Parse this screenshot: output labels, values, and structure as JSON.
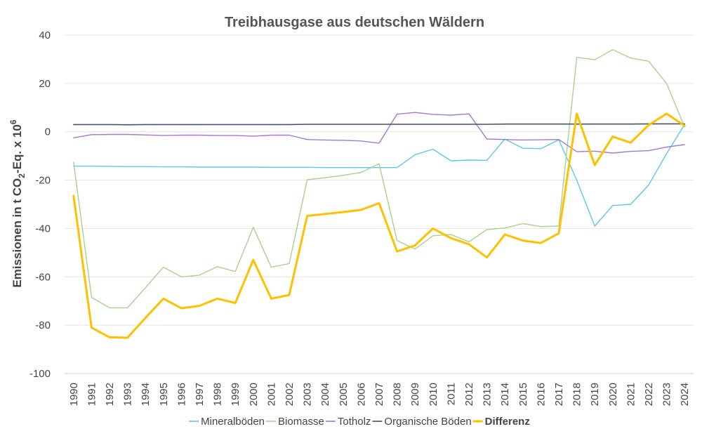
{
  "chart_data": {
    "type": "line",
    "title": "Treibhausgase aus deutschen Wäldern",
    "ylabel_parts": [
      "Emissionen in t CO",
      "2",
      "-Eq. x 10",
      "6"
    ],
    "xlabel": "",
    "ylim": [
      -100,
      40
    ],
    "yticks": [
      40,
      20,
      0,
      -20,
      -40,
      -60,
      -80,
      -100
    ],
    "grid": true,
    "legend_position": "bottom",
    "x": [
      "1990",
      "1991",
      "1992",
      "1993",
      "1994",
      "1995",
      "1996",
      "1997",
      "1998",
      "1999",
      "2000",
      "2001",
      "2002",
      "2003",
      "2004",
      "2005",
      "2006",
      "2007",
      "2008",
      "2009",
      "2010",
      "2011",
      "2012",
      "2013",
      "2014",
      "2015",
      "2016",
      "2017",
      "2018",
      "2019",
      "2020",
      "2021",
      "2022",
      "2023",
      "2024"
    ],
    "series": [
      {
        "name": "Mineralböden",
        "color": "#5bc8ee",
        "width": 1.4,
        "bold": false,
        "values": [
          -14.2,
          -14.2,
          -14.3,
          -14.4,
          -14.4,
          -14.5,
          -14.5,
          -14.6,
          -14.6,
          -14.6,
          -14.6,
          -14.7,
          -14.7,
          -14.7,
          -14.8,
          -14.8,
          -14.8,
          -14.8,
          -14.8,
          -9.5,
          -7.2,
          -12,
          -11.7,
          -11.8,
          -3,
          -6.8,
          -7,
          -3.3,
          -20,
          -39,
          -30.5,
          -30,
          -22,
          -9,
          3
        ]
      },
      {
        "name": "Biomasse",
        "color": "#a9d18e",
        "width": 1.4,
        "bold": false,
        "values": [
          -12.5,
          -68.5,
          -72.8,
          -72.8,
          -64.5,
          -56,
          -60,
          -59.3,
          -55.8,
          -57.8,
          -39.5,
          -56,
          -54.5,
          -19.8,
          -19,
          -18,
          -16.8,
          -13.2,
          -45,
          -48.5,
          -43,
          -42.5,
          -45.5,
          -40.5,
          -39.8,
          -38,
          -39.2,
          -39,
          30.8,
          29.8,
          34,
          30.5,
          29.2,
          20,
          2
        ]
      },
      {
        "name": "Totholz",
        "color": "#a778cf",
        "width": 1.4,
        "bold": false,
        "values": [
          -2.5,
          -1.2,
          -1.1,
          -1.1,
          -1.3,
          -1.5,
          -1.4,
          -1.4,
          -1.5,
          -1.5,
          -1.8,
          -1.4,
          -1.4,
          -3.2,
          -3.4,
          -3.5,
          -3.8,
          -4.7,
          7.3,
          8,
          7.2,
          6.9,
          7.4,
          -3,
          -3.2,
          -3.4,
          -3.3,
          -3.2,
          -8.2,
          -8,
          -8.8,
          -8.1,
          -7.8,
          -6.3,
          -5.3
        ]
      },
      {
        "name": "Organische Böden",
        "color": "#44546a",
        "width": 1.6,
        "bold": false,
        "values": [
          3,
          3,
          3,
          2.9,
          3,
          3,
          3,
          3,
          3,
          3,
          3,
          3,
          3,
          3.1,
          3.1,
          3.1,
          3.1,
          3.1,
          3.1,
          3.1,
          3.1,
          3.1,
          3.1,
          3.1,
          3.2,
          3.2,
          3.2,
          3.2,
          3.2,
          3.2,
          3.2,
          3.2,
          3.3,
          3.3,
          3.3
        ]
      },
      {
        "name": "Differenz",
        "color": "#ffc000",
        "width": 3,
        "bold": true,
        "values": [
          -26.5,
          -81,
          -85,
          -85.2,
          -77,
          -69,
          -73,
          -72,
          -69,
          -70.8,
          -53,
          -69,
          -67.5,
          -34.8,
          -34,
          -33.2,
          -32.3,
          -29.5,
          -49.5,
          -47,
          -40,
          -44,
          -46.5,
          -52,
          -42.5,
          -45,
          -46,
          -42,
          7.5,
          -13.8,
          -2,
          -4.5,
          2.8,
          7.5,
          2.5
        ]
      }
    ]
  }
}
